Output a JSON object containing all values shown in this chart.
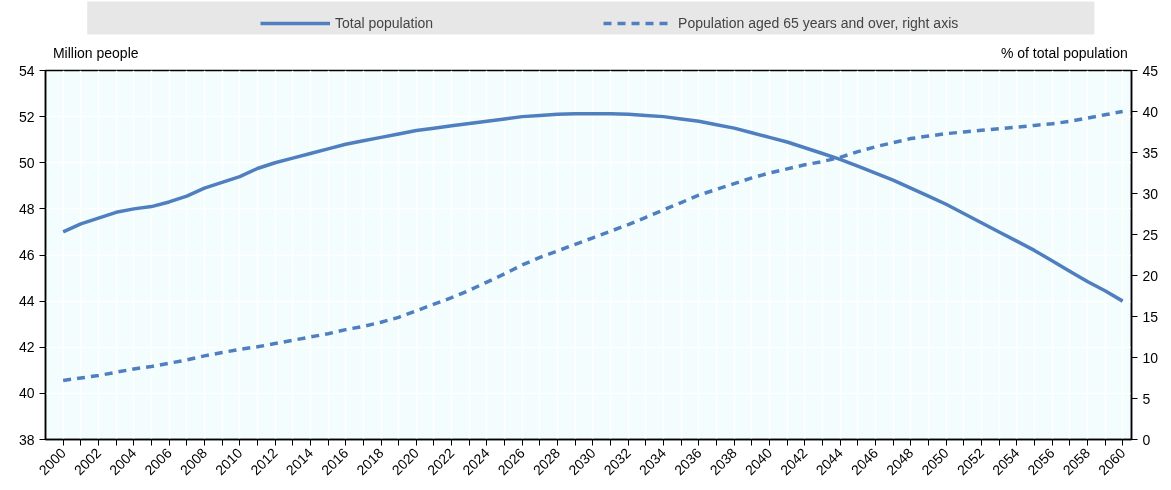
{
  "chart_data": {
    "type": "line",
    "ylabel": "Million people",
    "y2label": "% of total population",
    "categories": [
      "2000",
      null,
      "2002",
      null,
      "2004",
      null,
      "2006",
      null,
      "2008",
      null,
      "2010",
      null,
      "2012",
      null,
      "2014",
      null,
      "2016",
      null,
      "2018",
      null,
      "2020",
      null,
      "2022",
      null,
      "2024",
      null,
      "2026",
      null,
      "2028",
      null,
      "2030",
      null,
      "2032",
      null,
      "2034",
      null,
      "2036",
      null,
      "2038",
      null,
      "2040",
      null,
      "2042",
      null,
      "2044",
      null,
      "2046",
      null,
      "2048",
      null,
      "2050",
      null,
      "2052",
      null,
      "2054",
      null,
      "2056",
      null,
      "2058",
      null,
      "2060"
    ],
    "series": [
      {
        "name": "Total population",
        "color": "#4f7fbf",
        "line_style": "solid",
        "values": [
          47.0,
          47.35,
          47.6,
          47.85,
          48.0,
          48.1,
          48.3,
          48.55,
          48.9,
          49.15,
          49.4,
          49.75,
          50.0,
          50.2,
          50.4,
          50.6,
          50.8,
          50.95,
          51.1,
          51.25,
          51.4,
          51.5,
          51.6,
          51.7,
          51.8,
          51.9,
          52.0,
          52.05,
          52.1,
          52.12,
          52.13,
          52.13,
          52.1,
          52.05,
          52.0,
          51.9,
          51.8,
          51.65,
          51.5,
          51.3,
          51.1,
          50.9,
          50.65,
          50.4,
          50.15,
          49.85,
          49.55,
          49.25,
          48.9,
          48.55,
          48.2,
          47.8,
          47.4,
          47.0,
          46.6,
          46.2,
          45.75,
          45.3,
          44.85,
          44.45,
          44.0
        ]
      },
      {
        "name": "Population aged 65 years and over, right axis",
        "color": "#4f7fbf",
        "line_style": "dashed",
        "axis": "y2",
        "values": [
          7.2,
          7.5,
          7.8,
          8.2,
          8.6,
          8.9,
          9.3,
          9.7,
          10.2,
          10.6,
          11.0,
          11.3,
          11.7,
          12.1,
          12.5,
          12.9,
          13.4,
          13.8,
          14.3,
          14.9,
          15.7,
          16.5,
          17.3,
          18.2,
          19.2,
          20.2,
          21.3,
          22.2,
          23.0,
          23.8,
          24.6,
          25.4,
          26.2,
          27.1,
          28.0,
          28.9,
          29.8,
          30.5,
          31.2,
          31.9,
          32.5,
          33.0,
          33.5,
          33.9,
          34.4,
          35.1,
          35.7,
          36.2,
          36.7,
          37.0,
          37.3,
          37.5,
          37.7,
          37.9,
          38.1,
          38.3,
          38.5,
          38.8,
          39.2,
          39.6,
          40.0
        ]
      }
    ],
    "ylim": [
      38,
      54
    ],
    "yticks": [
      38,
      40,
      42,
      44,
      46,
      48,
      50,
      52,
      54
    ],
    "y2lim": [
      0,
      45
    ],
    "y2ticks": [
      0,
      5,
      10,
      15,
      20,
      25,
      30,
      35,
      40,
      45
    ],
    "grid": true,
    "legend": "top"
  }
}
